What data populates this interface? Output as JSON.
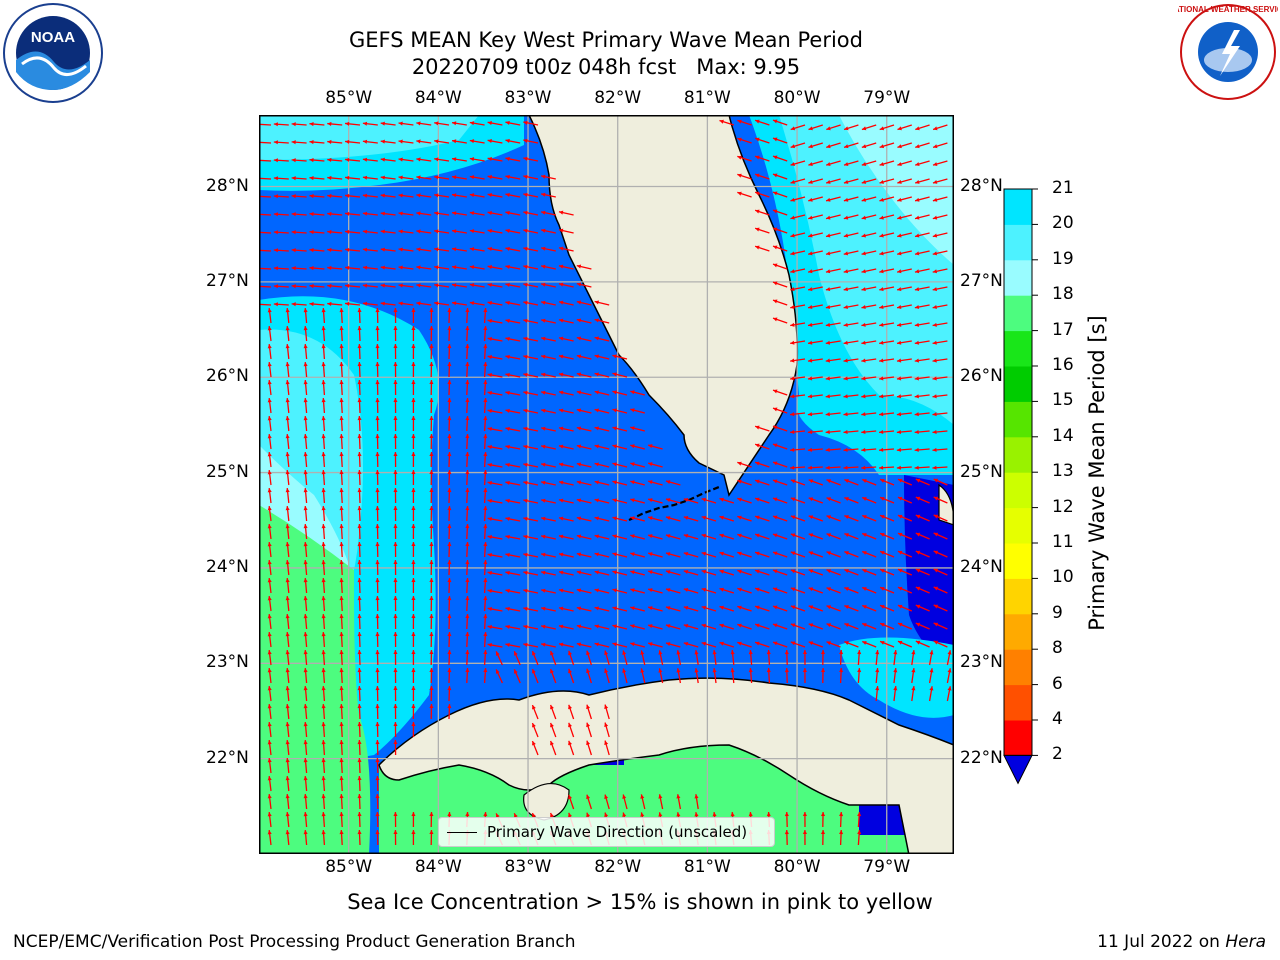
{
  "header": {
    "title_line1": "GEFS MEAN Key West Primary Wave Mean Period",
    "title_line2": "20220709 t00z 048h fcst   Max: 9.95"
  },
  "logos": {
    "left": "noaa-logo",
    "right": "national-weather-service-logo",
    "left_text": "NOAA",
    "right_text": "NATIONAL WEATHER SERVICE"
  },
  "map": {
    "lon_labels": [
      "85°W",
      "84°W",
      "83°W",
      "82°W",
      "81°W",
      "80°W",
      "79°W"
    ],
    "lat_labels": [
      "28°N",
      "27°N",
      "26°N",
      "25°N",
      "24°N",
      "23°N",
      "22°N"
    ],
    "extent": {
      "lon_min": -86.0,
      "lon_max": -78.25,
      "lat_min": 21.0,
      "lat_max": 28.75
    },
    "legend_label": "Primary Wave Direction (unscaled)",
    "colors": {
      "land": "#efeedd",
      "coast": "#000000",
      "arrow": "#ff0000",
      "grid": "#b0b0b0"
    }
  },
  "colorbar": {
    "label": "Primary Wave Mean Period [s]",
    "ticks": [
      "2",
      "4",
      "6",
      "8",
      "9",
      "10",
      "11",
      "12",
      "13",
      "14",
      "15",
      "16",
      "17",
      "18",
      "19",
      "20",
      "21"
    ],
    "colors": [
      "#0066ff",
      "#00e5ff",
      "#4df2ff",
      "#99fcff",
      "#4dfc7f",
      "#19e619",
      "#00cc00",
      "#56e500",
      "#99f200",
      "#ccff00",
      "#e6ff00",
      "#ffff00",
      "#ffd400",
      "#ffaa00",
      "#ff8000",
      "#ff5000",
      "#ff2000",
      "#ff0000"
    ],
    "under_color": "#0000e0"
  },
  "footer": {
    "note": "Sea Ice Concentration > 15% is shown in pink to yellow",
    "left": "NCEP/EMC/Verification Post Processing Product Generation Branch",
    "right_prefix": "11 Jul 2022 on ",
    "right_system": "Hera"
  }
}
